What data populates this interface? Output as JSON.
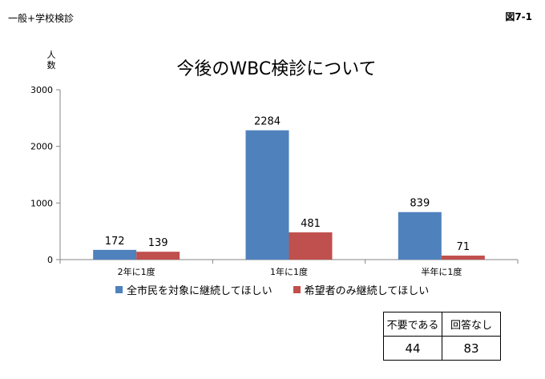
{
  "header": {
    "section": "一般+学校検診",
    "figure_no": "図7-1"
  },
  "chart_data": {
    "type": "bar",
    "title": "今後のWBC検診について",
    "ylabel": "人数",
    "xlabel": "",
    "ylim": [
      0,
      3000
    ],
    "yticks": [
      0,
      1000,
      2000,
      3000
    ],
    "categories": [
      "2年に1度",
      "1年に1度",
      "半年に1度"
    ],
    "series": [
      {
        "name": "全市民を対象に継続してほしい",
        "color": "#4f81bd",
        "values": [
          172,
          2284,
          839
        ]
      },
      {
        "name": "希望者のみ継続してほしい",
        "color": "#c0504d",
        "values": [
          139,
          481,
          71
        ]
      }
    ],
    "legend_position": "bottom",
    "grid": false
  },
  "summary_table": {
    "headers": [
      "不要である",
      "回答なし"
    ],
    "values": [
      "44",
      "83"
    ]
  }
}
